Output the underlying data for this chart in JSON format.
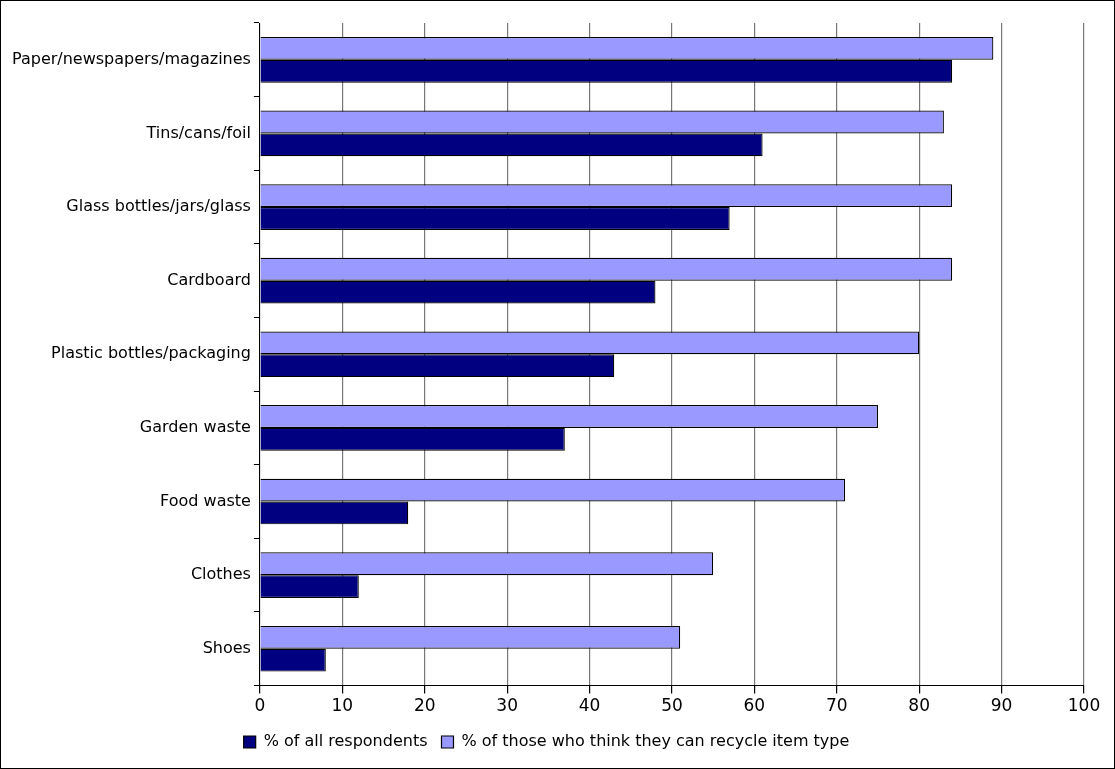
{
  "chart_data": {
    "type": "bar",
    "orientation": "horizontal",
    "categories": [
      "Paper/newspapers/magazines",
      "Tins/cans/foil",
      "Glass bottles/jars/glass",
      "Cardboard",
      "Plastic bottles/packaging",
      "Garden waste",
      "Food waste",
      "Clothes",
      "Shoes"
    ],
    "series": [
      {
        "name": "% of those who think they can recycle item type",
        "color": "#9999ff",
        "values": [
          89,
          83,
          84,
          84,
          80,
          75,
          71,
          55,
          51
        ]
      },
      {
        "name": "% of all respondents",
        "color": "#000080",
        "values": [
          84,
          61,
          57,
          48,
          43,
          37,
          18,
          12,
          8
        ]
      }
    ],
    "xlim": [
      0,
      100
    ],
    "xticks": [
      0,
      10,
      20,
      30,
      40,
      50,
      60,
      70,
      80,
      90,
      100
    ],
    "grid": "x",
    "legend": "bottom"
  }
}
